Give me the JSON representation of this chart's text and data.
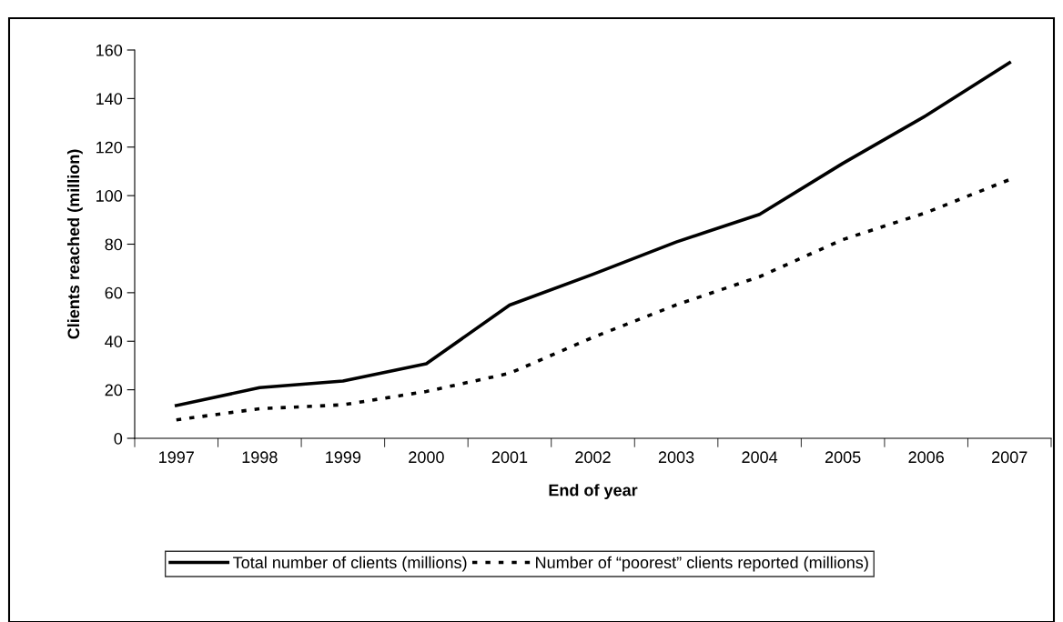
{
  "chart_data": {
    "type": "line",
    "xlabel": "End of year",
    "ylabel": "Clients reached (million)",
    "categories": [
      "1997",
      "1998",
      "1999",
      "2000",
      "2001",
      "2002",
      "2003",
      "2004",
      "2005",
      "2006",
      "2007"
    ],
    "series": [
      {
        "name": "Total number of clients (millions)",
        "color": "#000000",
        "line_style": "solid",
        "values": [
          13.5,
          20.9,
          23.6,
          30.7,
          54.9,
          67.6,
          80.9,
          92.3,
          113.3,
          133.0,
          154.8
        ]
      },
      {
        "name": "Number of “poorest” clients reported (millions)",
        "color": "#000000",
        "line_style": "dotted",
        "values": [
          7.6,
          12.2,
          13.8,
          19.3,
          26.8,
          41.6,
          55.0,
          66.6,
          81.9,
          93.0,
          106.6
        ]
      }
    ],
    "ylim": [
      0,
      160
    ],
    "yticks": [
      0,
      20,
      40,
      60,
      80,
      100,
      120,
      140,
      160
    ],
    "grid": false,
    "legend": "bottom",
    "marker": "none"
  }
}
